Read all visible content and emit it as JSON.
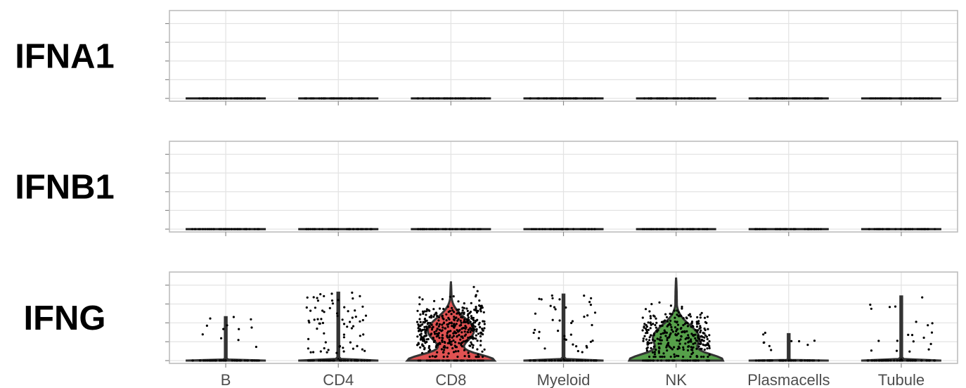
{
  "chart_data": [
    {
      "type": "violin",
      "title": "IFNA1",
      "categories": [
        "B",
        "CD4",
        "CD8",
        "Myeloid",
        "NK",
        "Plasmacells",
        "Tubule"
      ],
      "ylim": [
        0,
        4
      ],
      "y_ticks": [
        0,
        1,
        2,
        3,
        4
      ],
      "violins": [
        {
          "category": "B",
          "max": 0,
          "fill": "#000000",
          "n_nonzero": 0
        },
        {
          "category": "CD4",
          "max": 0,
          "fill": "#000000",
          "n_nonzero": 0
        },
        {
          "category": "CD8",
          "max": 0,
          "fill": "#000000",
          "n_nonzero": 0
        },
        {
          "category": "Myeloid",
          "max": 0,
          "fill": "#000000",
          "n_nonzero": 0
        },
        {
          "category": "NK",
          "max": 0,
          "fill": "#000000",
          "n_nonzero": 0
        },
        {
          "category": "Plasmacells",
          "max": 0,
          "fill": "#000000",
          "n_nonzero": 0
        },
        {
          "category": "Tubule",
          "max": 0,
          "fill": "#000000",
          "n_nonzero": 0
        }
      ],
      "show_x_labels": false,
      "grid": true
    },
    {
      "type": "violin",
      "title": "IFNB1",
      "categories": [
        "B",
        "CD4",
        "CD8",
        "Myeloid",
        "NK",
        "Plasmacells",
        "Tubule"
      ],
      "ylim": [
        0,
        4
      ],
      "y_ticks": [
        0,
        1,
        2,
        3,
        4
      ],
      "violins": [
        {
          "category": "B",
          "max": 0,
          "fill": "#000000",
          "n_nonzero": 0
        },
        {
          "category": "CD4",
          "max": 0,
          "fill": "#000000",
          "n_nonzero": 0
        },
        {
          "category": "CD8",
          "max": 0,
          "fill": "#000000",
          "n_nonzero": 0
        },
        {
          "category": "Myeloid",
          "max": 0,
          "fill": "#000000",
          "n_nonzero": 0
        },
        {
          "category": "NK",
          "max": 0,
          "fill": "#000000",
          "n_nonzero": 0
        },
        {
          "category": "Plasmacells",
          "max": 0,
          "fill": "#000000",
          "n_nonzero": 0
        },
        {
          "category": "Tubule",
          "max": 0,
          "fill": "#000000",
          "n_nonzero": 0
        }
      ],
      "show_x_labels": false,
      "grid": true
    },
    {
      "type": "violin",
      "title": "IFNG",
      "categories": [
        "B",
        "CD4",
        "CD8",
        "Myeloid",
        "NK",
        "Plasmacells",
        "Tubule"
      ],
      "ylim": [
        0,
        4
      ],
      "y_ticks": [
        0,
        1,
        2,
        3,
        4
      ],
      "violins": [
        {
          "category": "B",
          "max": 2.3,
          "fill": "#000000",
          "n_nonzero": 12
        },
        {
          "category": "CD4",
          "max": 3.6,
          "fill": "#000000",
          "n_nonzero": 70
        },
        {
          "category": "CD8",
          "max": 4.2,
          "fill": "#e05252",
          "n_nonzero": 420
        },
        {
          "category": "Myeloid",
          "max": 3.5,
          "fill": "#000000",
          "n_nonzero": 40
        },
        {
          "category": "NK",
          "max": 4.4,
          "fill": "#56a04a",
          "n_nonzero": 300
        },
        {
          "category": "Plasmacells",
          "max": 1.4,
          "fill": "#000000",
          "n_nonzero": 10
        },
        {
          "category": "Tubule",
          "max": 3.4,
          "fill": "#000000",
          "n_nonzero": 20
        }
      ],
      "show_x_labels": true,
      "grid": true
    }
  ]
}
